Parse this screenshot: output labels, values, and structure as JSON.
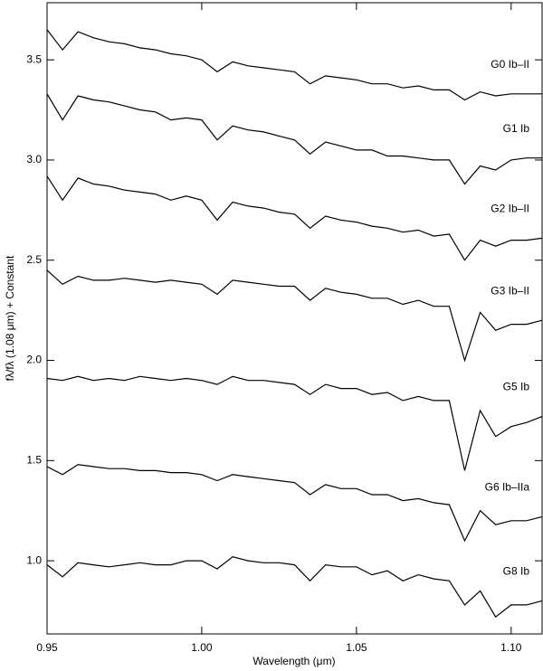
{
  "chart_data": {
    "type": "line",
    "x_label": "Wavelength (μm)",
    "y_label": "fλ/fλ (1.08 μm) + Constant",
    "x": [
      0.95,
      0.955,
      0.96,
      0.965,
      0.97,
      0.975,
      0.98,
      0.985,
      0.99,
      0.995,
      1.0,
      1.005,
      1.01,
      1.015,
      1.02,
      1.025,
      1.03,
      1.035,
      1.04,
      1.045,
      1.05,
      1.055,
      1.06,
      1.065,
      1.07,
      1.075,
      1.08,
      1.085,
      1.09,
      1.095,
      1.1,
      1.105,
      1.11
    ],
    "series": [
      {
        "name": "G0 Ib–II",
        "color": "#000000",
        "values": [
          3.65,
          3.55,
          3.64,
          3.61,
          3.59,
          3.58,
          3.56,
          3.55,
          3.53,
          3.52,
          3.5,
          3.44,
          3.49,
          3.47,
          3.46,
          3.45,
          3.44,
          3.38,
          3.42,
          3.41,
          3.4,
          3.38,
          3.38,
          3.36,
          3.37,
          3.35,
          3.35,
          3.3,
          3.34,
          3.32,
          3.33,
          3.33,
          3.33
        ]
      },
      {
        "name": "G1 Ib",
        "color": "#000000",
        "values": [
          3.33,
          3.2,
          3.32,
          3.3,
          3.29,
          3.27,
          3.25,
          3.24,
          3.2,
          3.21,
          3.2,
          3.1,
          3.17,
          3.15,
          3.14,
          3.12,
          3.1,
          3.03,
          3.09,
          3.07,
          3.05,
          3.05,
          3.02,
          3.02,
          3.01,
          3.0,
          3.0,
          2.88,
          2.97,
          2.95,
          3.0,
          3.01,
          3.01
        ]
      },
      {
        "name": "G2 Ib–II",
        "color": "#000000",
        "values": [
          2.92,
          2.8,
          2.91,
          2.88,
          2.87,
          2.85,
          2.84,
          2.83,
          2.8,
          2.82,
          2.8,
          2.7,
          2.79,
          2.77,
          2.76,
          2.74,
          2.73,
          2.66,
          2.72,
          2.7,
          2.69,
          2.67,
          2.66,
          2.64,
          2.65,
          2.62,
          2.63,
          2.5,
          2.6,
          2.57,
          2.6,
          2.6,
          2.61
        ]
      },
      {
        "name": "G3 Ib–II",
        "color": "#000000",
        "values": [
          2.45,
          2.38,
          2.42,
          2.4,
          2.4,
          2.41,
          2.4,
          2.39,
          2.4,
          2.39,
          2.38,
          2.33,
          2.4,
          2.39,
          2.38,
          2.37,
          2.37,
          2.3,
          2.36,
          2.34,
          2.33,
          2.31,
          2.31,
          2.28,
          2.3,
          2.27,
          2.27,
          2.0,
          2.24,
          2.15,
          2.18,
          2.18,
          2.2
        ]
      },
      {
        "name": "G5 Ib",
        "color": "#000000",
        "values": [
          1.91,
          1.9,
          1.92,
          1.9,
          1.91,
          1.9,
          1.92,
          1.91,
          1.9,
          1.91,
          1.9,
          1.88,
          1.92,
          1.9,
          1.9,
          1.89,
          1.88,
          1.83,
          1.88,
          1.86,
          1.86,
          1.83,
          1.84,
          1.8,
          1.82,
          1.8,
          1.8,
          1.45,
          1.75,
          1.62,
          1.67,
          1.69,
          1.72
        ]
      },
      {
        "name": "G6 Ib–IIa",
        "color": "#000000",
        "values": [
          1.47,
          1.43,
          1.48,
          1.47,
          1.46,
          1.46,
          1.45,
          1.45,
          1.44,
          1.44,
          1.43,
          1.4,
          1.43,
          1.42,
          1.41,
          1.4,
          1.39,
          1.33,
          1.38,
          1.36,
          1.36,
          1.33,
          1.33,
          1.3,
          1.31,
          1.29,
          1.28,
          1.1,
          1.25,
          1.18,
          1.2,
          1.2,
          1.22
        ]
      },
      {
        "name": "G8 Ib",
        "color": "#000000",
        "values": [
          0.98,
          0.92,
          0.99,
          0.98,
          0.97,
          0.98,
          0.99,
          0.98,
          0.98,
          1.0,
          1.0,
          0.96,
          1.02,
          1.0,
          0.99,
          0.99,
          0.98,
          0.9,
          0.98,
          0.97,
          0.97,
          0.93,
          0.95,
          0.9,
          0.93,
          0.91,
          0.9,
          0.78,
          0.85,
          0.72,
          0.78,
          0.78,
          0.8
        ]
      }
    ],
    "xlim": [
      0.95,
      1.11
    ],
    "xticks": [
      0.95,
      {
        "value": 1.0,
        "label": "1.00"
      },
      1.05,
      {
        "value": 1.1,
        "label": "1.10"
      }
    ],
    "ylim": [
      0.635,
      3.785
    ],
    "yticks": [
      {
        "value": 1.0,
        "label": "1.0"
      },
      1.5,
      {
        "value": 2.0,
        "label": "2.0"
      },
      2.5,
      {
        "value": 3.0,
        "label": "3.0"
      },
      3.5
    ]
  }
}
